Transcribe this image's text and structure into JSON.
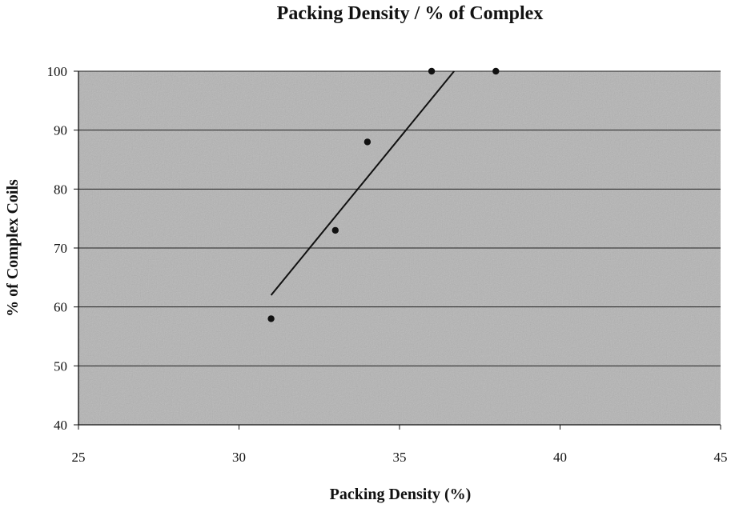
{
  "chart_data": {
    "type": "scatter",
    "title": "Packing Density / % of Complex",
    "xlabel": "Packing Density (%)",
    "ylabel": "% of Complex Coils",
    "xlim": [
      25,
      45
    ],
    "ylim": [
      40,
      100
    ],
    "xticks": [
      25,
      30,
      35,
      40,
      45
    ],
    "yticks": [
      40,
      50,
      60,
      70,
      80,
      90,
      100
    ],
    "grid": "horizontal",
    "legend": "none",
    "plot_background": "#b4b4b4",
    "series": [
      {
        "x": [
          31,
          33,
          34,
          36,
          38
        ],
        "y": [
          58,
          73,
          88,
          100,
          100
        ],
        "marker_color": "#111111"
      }
    ],
    "trendline": {
      "type": "linear",
      "x": [
        31,
        36.7
      ],
      "y": [
        62,
        100
      ],
      "color": "#111111"
    }
  }
}
